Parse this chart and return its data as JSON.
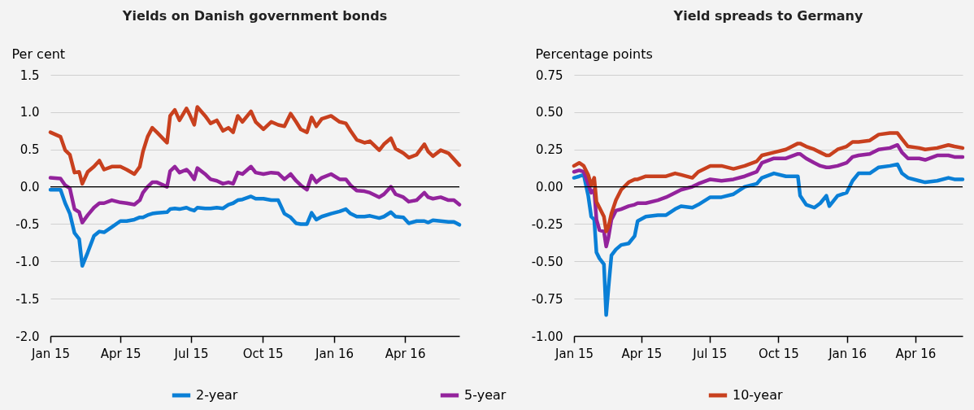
{
  "chart_data": [
    {
      "type": "line",
      "title": "Yields on Danish government bonds",
      "ylabel": "Per cent",
      "grid": "y",
      "legend": "bottom",
      "x": [
        "2015-01-01",
        "2015-01-14",
        "2015-01-20",
        "2015-01-26",
        "2015-02-01",
        "2015-02-07",
        "2015-02-11",
        "2015-02-18",
        "2015-02-26",
        "2015-03-05",
        "2015-03-11",
        "2015-03-21",
        "2015-04-01",
        "2015-04-09",
        "2015-04-19",
        "2015-04-26",
        "2015-04-30",
        "2015-05-06",
        "2015-05-12",
        "2015-05-18",
        "2015-05-31",
        "2015-06-04",
        "2015-06-10",
        "2015-06-16",
        "2015-06-25",
        "2015-06-29",
        "2015-07-05",
        "2015-07-09",
        "2015-07-19",
        "2015-07-26",
        "2015-08-03",
        "2015-08-11",
        "2015-08-18",
        "2015-08-24",
        "2015-08-30",
        "2015-09-05",
        "2015-09-16",
        "2015-09-22",
        "2015-10-02",
        "2015-10-12",
        "2015-10-21",
        "2015-10-29",
        "2015-11-06",
        "2015-11-13",
        "2015-11-19",
        "2015-11-27",
        "2015-12-03",
        "2015-12-09",
        "2015-12-16",
        "2015-12-28",
        "2016-01-08",
        "2016-01-16",
        "2016-01-22",
        "2016-01-30",
        "2016-02-09",
        "2016-02-16",
        "2016-02-28",
        "2016-03-05",
        "2016-03-14",
        "2016-03-20",
        "2016-03-30",
        "2016-04-06",
        "2016-04-16",
        "2016-04-26",
        "2016-05-01",
        "2016-05-07",
        "2016-05-17",
        "2016-05-27",
        "2016-06-03",
        "2016-06-10"
      ],
      "xlim": [
        "2015-01-01",
        "2016-06-10"
      ],
      "xticks": [
        {
          "value": "2015-01-01",
          "label": "Jan 15"
        },
        {
          "value": "2015-04-01",
          "label": "Apr 15"
        },
        {
          "value": "2015-07-01",
          "label": "Jul 15"
        },
        {
          "value": "2015-10-01",
          "label": "Oct 15"
        },
        {
          "value": "2016-01-01",
          "label": "Jan 16"
        },
        {
          "value": "2016-04-01",
          "label": "Apr 16"
        }
      ],
      "ylim": [
        -2,
        1.5
      ],
      "yticks": [
        {
          "value": -2,
          "label": "-2.0"
        },
        -1.5,
        {
          "value": -1,
          "label": "-1.0"
        },
        -0.5,
        {
          "value": 0,
          "label": "0.0"
        },
        0.5,
        {
          "value": 1,
          "label": "1.0"
        },
        1.5
      ],
      "ref_lines": [
        {
          "axis": "y",
          "value": 0,
          "color": "#000000"
        }
      ],
      "series": [
        {
          "name": "2-year",
          "color": "#0a7fd6",
          "values": [
            -0.04,
            -0.04,
            -0.22,
            -0.36,
            -0.62,
            -0.7,
            -1.06,
            -0.88,
            -0.66,
            -0.6,
            -0.61,
            -0.54,
            -0.46,
            -0.46,
            -0.44,
            -0.41,
            -0.41,
            -0.38,
            -0.36,
            -0.35,
            -0.34,
            -0.3,
            -0.29,
            -0.3,
            -0.28,
            -0.3,
            -0.32,
            -0.28,
            -0.29,
            -0.29,
            -0.28,
            -0.29,
            -0.24,
            -0.22,
            -0.18,
            -0.17,
            -0.13,
            -0.16,
            -0.16,
            -0.18,
            -0.18,
            -0.36,
            -0.41,
            -0.49,
            -0.5,
            -0.5,
            -0.35,
            -0.44,
            -0.4,
            -0.36,
            -0.33,
            -0.3,
            -0.36,
            -0.4,
            -0.4,
            -0.39,
            -0.42,
            -0.4,
            -0.34,
            -0.4,
            -0.41,
            -0.49,
            -0.46,
            -0.46,
            -0.48,
            -0.45,
            -0.46,
            -0.47,
            -0.47,
            -0.51
          ]
        },
        {
          "name": "5-year",
          "color": "#93239c",
          "values": [
            0.12,
            0.11,
            0.02,
            -0.02,
            -0.3,
            -0.34,
            -0.48,
            -0.38,
            -0.28,
            -0.22,
            -0.22,
            -0.18,
            -0.21,
            -0.22,
            -0.24,
            -0.18,
            -0.08,
            0.0,
            0.06,
            0.06,
            0.0,
            0.21,
            0.27,
            0.19,
            0.23,
            0.19,
            0.1,
            0.25,
            0.17,
            0.1,
            0.08,
            0.04,
            0.06,
            0.04,
            0.19,
            0.17,
            0.27,
            0.19,
            0.17,
            0.19,
            0.18,
            0.1,
            0.17,
            0.08,
            0.02,
            -0.04,
            0.15,
            0.06,
            0.12,
            0.17,
            0.1,
            0.1,
            0.02,
            -0.05,
            -0.06,
            -0.08,
            -0.14,
            -0.1,
            0.0,
            -0.1,
            -0.14,
            -0.2,
            -0.18,
            -0.08,
            -0.14,
            -0.16,
            -0.14,
            -0.18,
            -0.18,
            -0.24
          ]
        },
        {
          "name": "10-year",
          "color": "#c8401e",
          "values": [
            0.73,
            0.67,
            0.49,
            0.43,
            0.19,
            0.2,
            0.04,
            0.2,
            0.27,
            0.35,
            0.23,
            0.27,
            0.27,
            0.23,
            0.17,
            0.27,
            0.47,
            0.67,
            0.79,
            0.73,
            0.59,
            0.95,
            1.03,
            0.89,
            1.05,
            0.97,
            0.83,
            1.07,
            0.95,
            0.85,
            0.89,
            0.75,
            0.79,
            0.73,
            0.95,
            0.87,
            1.01,
            0.87,
            0.77,
            0.87,
            0.83,
            0.81,
            0.98,
            0.87,
            0.77,
            0.73,
            0.93,
            0.81,
            0.91,
            0.95,
            0.87,
            0.85,
            0.75,
            0.63,
            0.59,
            0.61,
            0.49,
            0.57,
            0.65,
            0.51,
            0.45,
            0.39,
            0.43,
            0.57,
            0.47,
            0.41,
            0.49,
            0.45,
            0.37,
            0.29
          ]
        }
      ]
    },
    {
      "type": "line",
      "title": "Yield spreads to Germany",
      "ylabel": "Percentage points",
      "grid": "y",
      "legend": "bottom",
      "x": [
        "2015-01-01",
        "2015-01-08",
        "2015-01-14",
        "2015-01-20",
        "2015-01-24",
        "2015-01-28",
        "2015-01-31",
        "2015-02-04",
        "2015-02-10",
        "2015-02-13",
        "2015-02-16",
        "2015-02-20",
        "2015-02-26",
        "2015-03-05",
        "2015-03-15",
        "2015-03-23",
        "2015-03-27",
        "2015-04-07",
        "2015-04-23",
        "2015-05-04",
        "2015-05-16",
        "2015-05-24",
        "2015-06-08",
        "2015-06-16",
        "2015-07-02",
        "2015-07-17",
        "2015-08-02",
        "2015-08-17",
        "2015-09-02",
        "2015-09-09",
        "2015-09-25",
        "2015-10-11",
        "2015-10-27",
        "2015-10-30",
        "2015-11-07",
        "2015-11-18",
        "2015-11-26",
        "2015-12-04",
        "2015-12-08",
        "2015-12-19",
        "2015-12-31",
        "2016-01-08",
        "2016-01-16",
        "2016-01-31",
        "2016-02-12",
        "2016-02-27",
        "2016-03-08",
        "2016-03-14",
        "2016-03-22",
        "2016-04-06",
        "2016-04-14",
        "2016-04-30",
        "2016-05-15",
        "2016-05-23",
        "2016-06-03"
      ],
      "xlim": [
        "2015-01-01",
        "2016-06-03"
      ],
      "xticks": [
        {
          "value": "2015-01-01",
          "label": "Jan 15"
        },
        {
          "value": "2015-04-01",
          "label": "Apr 15"
        },
        {
          "value": "2015-07-01",
          "label": "Jul 15"
        },
        {
          "value": "2015-10-01",
          "label": "Oct 15"
        },
        {
          "value": "2016-01-01",
          "label": "Jan 16"
        },
        {
          "value": "2016-04-01",
          "label": "Apr 16"
        }
      ],
      "ylim": [
        -1,
        0.75
      ],
      "yticks": [
        {
          "value": -1,
          "label": "-1.00"
        },
        -0.75,
        {
          "value": -0.5,
          "label": "-0.50"
        },
        -0.25,
        {
          "value": 0,
          "label": "0.00"
        },
        0.25,
        {
          "value": 0.5,
          "label": "0.50"
        },
        0.75
      ],
      "ref_lines": [
        {
          "axis": "y",
          "value": 0,
          "color": "#000000"
        }
      ],
      "series": [
        {
          "name": "2-year",
          "color": "#0a7fd6",
          "values": [
            0.06,
            0.07,
            0.08,
            -0.06,
            -0.2,
            -0.22,
            -0.44,
            -0.48,
            -0.52,
            -0.86,
            -0.68,
            -0.46,
            -0.42,
            -0.39,
            -0.38,
            -0.33,
            -0.23,
            -0.2,
            -0.19,
            -0.19,
            -0.15,
            -0.13,
            -0.14,
            -0.12,
            -0.07,
            -0.07,
            -0.05,
            0.0,
            0.02,
            0.06,
            0.09,
            0.07,
            0.07,
            -0.06,
            -0.12,
            -0.14,
            -0.11,
            -0.06,
            -0.13,
            -0.06,
            -0.04,
            0.04,
            0.09,
            0.09,
            0.13,
            0.14,
            0.15,
            0.09,
            0.06,
            0.04,
            0.03,
            0.04,
            0.06,
            0.05,
            0.05
          ]
        },
        {
          "name": "5-year",
          "color": "#93239c",
          "values": [
            0.1,
            0.11,
            0.1,
            0.02,
            -0.04,
            -0.02,
            -0.22,
            -0.29,
            -0.3,
            -0.4,
            -0.34,
            -0.22,
            -0.16,
            -0.15,
            -0.13,
            -0.12,
            -0.11,
            -0.11,
            -0.09,
            -0.07,
            -0.04,
            -0.02,
            0.0,
            0.02,
            0.05,
            0.04,
            0.05,
            0.07,
            0.1,
            0.16,
            0.19,
            0.19,
            0.22,
            0.22,
            0.19,
            0.16,
            0.14,
            0.13,
            0.13,
            0.14,
            0.16,
            0.2,
            0.21,
            0.22,
            0.25,
            0.26,
            0.28,
            0.23,
            0.19,
            0.19,
            0.18,
            0.21,
            0.21,
            0.2,
            0.2
          ]
        },
        {
          "name": "10-year",
          "color": "#c8401e",
          "values": [
            0.14,
            0.16,
            0.14,
            0.08,
            0.01,
            0.06,
            -0.1,
            -0.14,
            -0.2,
            -0.3,
            -0.27,
            -0.18,
            -0.09,
            -0.02,
            0.03,
            0.05,
            0.05,
            0.07,
            0.07,
            0.07,
            0.09,
            0.08,
            0.06,
            0.1,
            0.14,
            0.14,
            0.12,
            0.14,
            0.17,
            0.21,
            0.23,
            0.25,
            0.29,
            0.29,
            0.27,
            0.25,
            0.23,
            0.21,
            0.21,
            0.25,
            0.27,
            0.3,
            0.3,
            0.31,
            0.35,
            0.36,
            0.36,
            0.32,
            0.27,
            0.26,
            0.25,
            0.26,
            0.28,
            0.27,
            0.26
          ]
        }
      ]
    }
  ]
}
